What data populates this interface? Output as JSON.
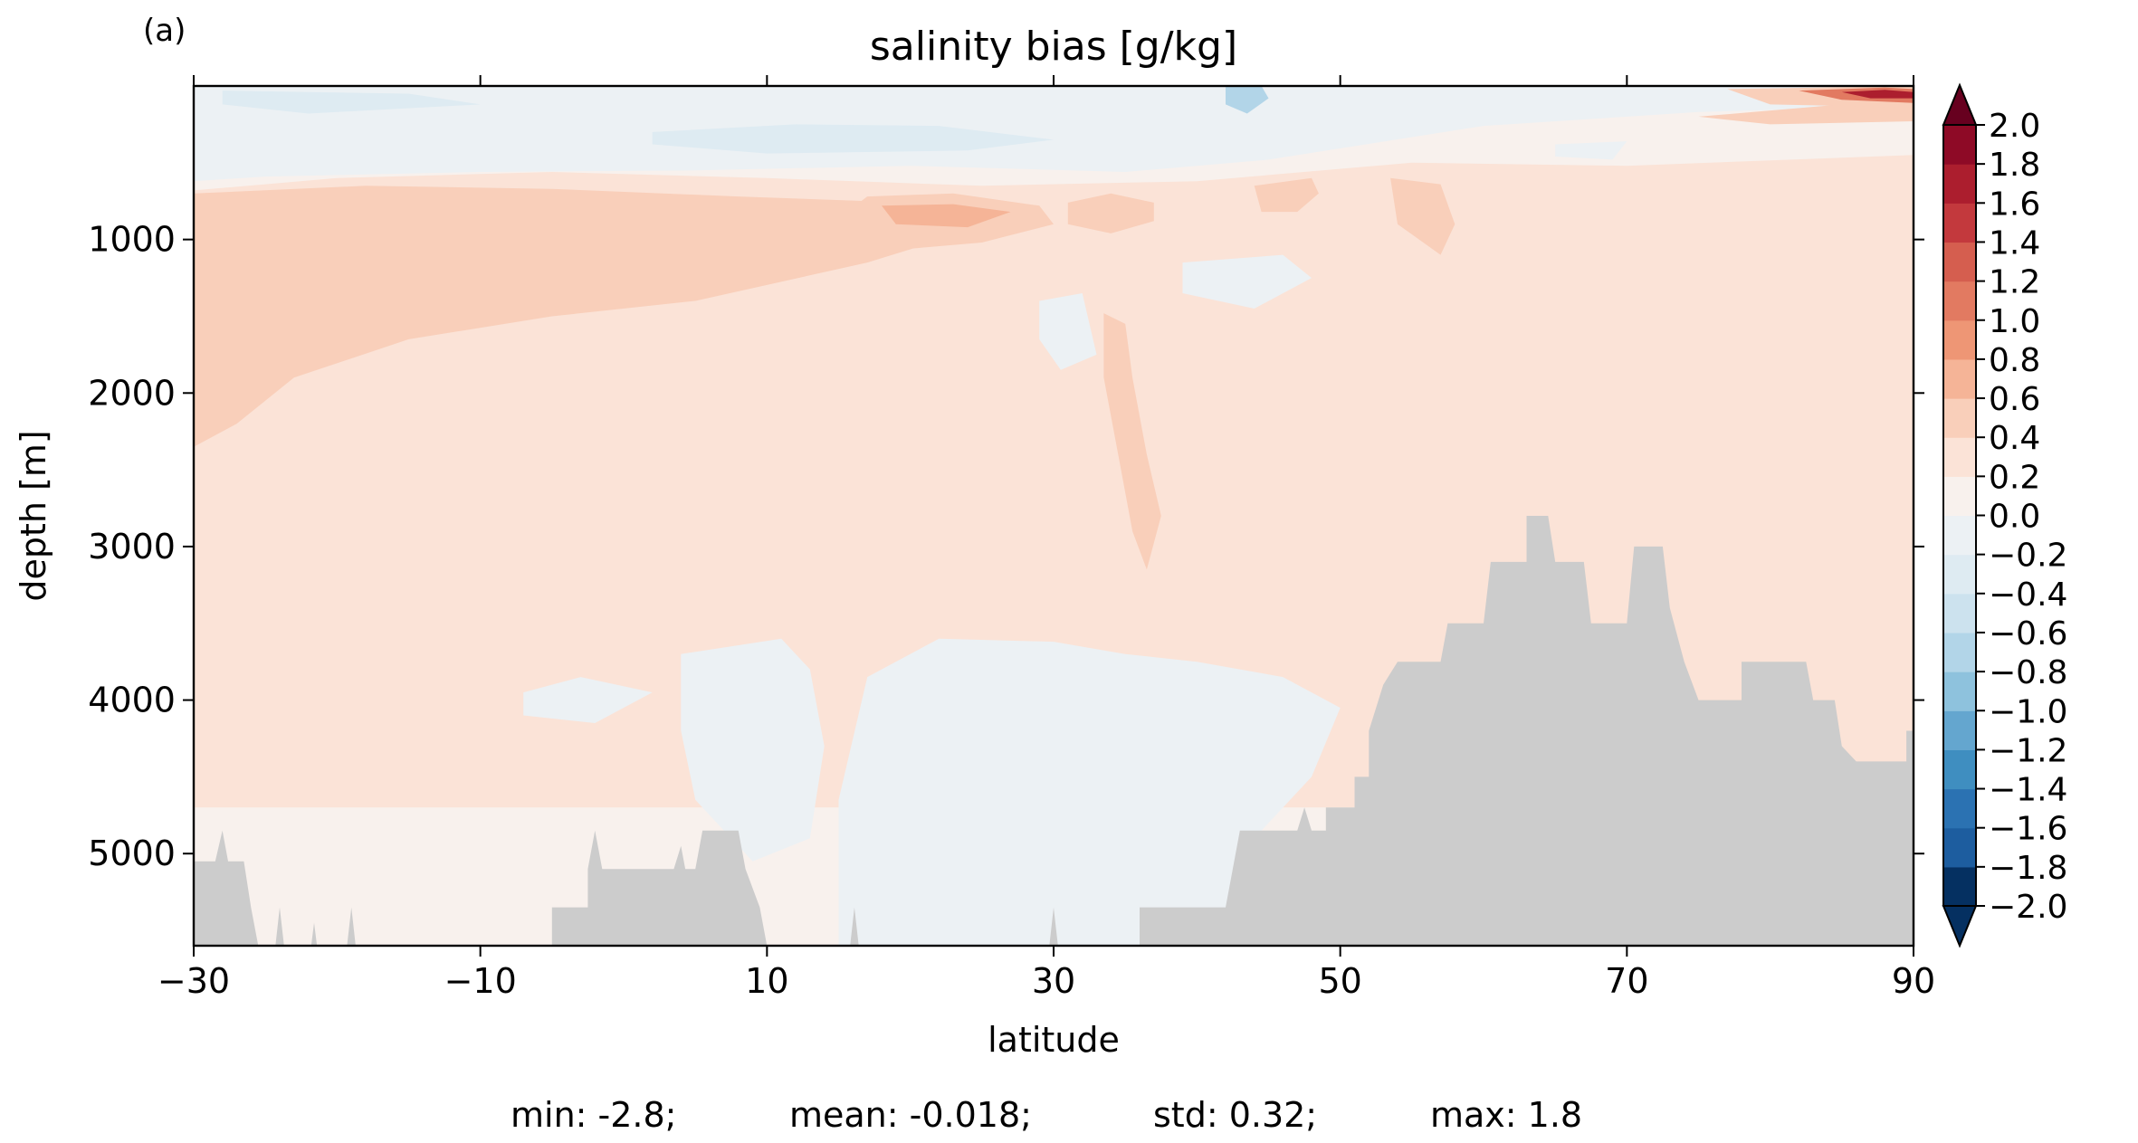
{
  "chart_data": {
    "type": "heatmap",
    "panel_label": "(a)",
    "title": "salinity bias [g/kg]",
    "xlabel": "latitude",
    "ylabel": "depth [m]",
    "xlim": [
      -30,
      90
    ],
    "ylim": [
      5600,
      0
    ],
    "x_ticks": [
      -30,
      -10,
      10,
      30,
      50,
      70,
      90
    ],
    "x_tick_labels": [
      "−30",
      "−10",
      "10",
      "30",
      "50",
      "70",
      "90"
    ],
    "y_ticks": [
      1000,
      2000,
      3000,
      4000,
      5000
    ],
    "y_tick_labels": [
      "1000",
      "2000",
      "3000",
      "4000",
      "5000"
    ],
    "colormap": "RdBu_r",
    "colorbar": {
      "levels": [
        -2.0,
        -1.8,
        -1.6,
        -1.4,
        -1.2,
        -1.0,
        -0.8,
        -0.6,
        -0.4,
        -0.2,
        0.0,
        0.2,
        0.4,
        0.6,
        0.8,
        1.0,
        1.2,
        1.4,
        1.6,
        1.8,
        2.0
      ],
      "tick_labels": [
        "−2.0",
        "−1.8",
        "−1.6",
        "−1.4",
        "−1.2",
        "−1.0",
        "−0.8",
        "−0.6",
        "−0.4",
        "−0.2",
        "0.0",
        "0.2",
        "0.4",
        "0.6",
        "0.8",
        "1.0",
        "1.2",
        "1.4",
        "1.6",
        "1.8",
        "2.0"
      ],
      "colors": [
        "#053061",
        "#1d5d9f",
        "#2b72b2",
        "#3f8ec0",
        "#64a6cf",
        "#8ec2dd",
        "#b2d5e8",
        "#cce2ee",
        "#deebf2",
        "#ecf1f4",
        "#f8f1ed",
        "#fbe3d7",
        "#f9cfba",
        "#f5b497",
        "#ee9675",
        "#e27a61",
        "#d55e4f",
        "#c3393d",
        "#ac1e2e",
        "#8e0a26"
      ],
      "extend": "both",
      "over_color": "#67001f",
      "under_color": "#053061"
    },
    "land_color": "#cccccc",
    "stats": {
      "min": "min: -2.8;",
      "mean": "mean: -0.018;",
      "std": "std: 0.32;",
      "max": "max: 1.8"
    },
    "features": [
      {
        "bias": 0.2,
        "points": [
          [
            -30,
            680
          ],
          [
            -20,
            600
          ],
          [
            -5,
            560
          ],
          [
            10,
            600
          ],
          [
            25,
            650
          ],
          [
            40,
            620
          ],
          [
            55,
            500
          ],
          [
            70,
            520
          ],
          [
            90,
            450
          ],
          [
            90,
            4700
          ],
          [
            -30,
            4700
          ]
        ]
      },
      {
        "bias": -0.2,
        "points": [
          [
            -30,
            0
          ],
          [
            90,
            0
          ],
          [
            90,
            130
          ],
          [
            75,
            170
          ],
          [
            60,
            260
          ],
          [
            45,
            480
          ],
          [
            35,
            560
          ],
          [
            20,
            520
          ],
          [
            5,
            550
          ],
          [
            -10,
            560
          ],
          [
            -25,
            590
          ],
          [
            -30,
            620
          ]
        ]
      },
      {
        "bias": 0.4,
        "points": [
          [
            -30,
            700
          ],
          [
            -18,
            650
          ],
          [
            -5,
            670
          ],
          [
            8,
            720
          ],
          [
            20,
            760
          ],
          [
            26,
            810
          ],
          [
            25,
            920
          ],
          [
            17,
            1150
          ],
          [
            5,
            1400
          ],
          [
            -5,
            1500
          ],
          [
            -15,
            1650
          ],
          [
            -23,
            1900
          ],
          [
            -27,
            2200
          ],
          [
            -30,
            2350
          ]
        ]
      },
      {
        "bias": 0.4,
        "points": [
          [
            17,
            720
          ],
          [
            23,
            700
          ],
          [
            29,
            780
          ],
          [
            30,
            900
          ],
          [
            25,
            1020
          ],
          [
            20,
            1060
          ],
          [
            16,
            1000
          ],
          [
            15,
            860
          ]
        ]
      },
      {
        "bias": 0.6,
        "points": [
          [
            18,
            780
          ],
          [
            23,
            770
          ],
          [
            27,
            820
          ],
          [
            24,
            920
          ],
          [
            19,
            900
          ]
        ]
      },
      {
        "bias": 0.4,
        "points": [
          [
            31,
            760
          ],
          [
            34,
            700
          ],
          [
            37,
            760
          ],
          [
            37,
            880
          ],
          [
            34,
            960
          ],
          [
            31,
            900
          ]
        ]
      },
      {
        "bias": 0.4,
        "points": [
          [
            33.5,
            1480
          ],
          [
            35,
            1550
          ],
          [
            35.5,
            1900
          ],
          [
            36.5,
            2400
          ],
          [
            37.5,
            2800
          ],
          [
            36.5,
            3150
          ],
          [
            35.5,
            2900
          ],
          [
            34.5,
            2400
          ],
          [
            33.5,
            1900
          ]
        ]
      },
      {
        "bias": 0.4,
        "points": [
          [
            44,
            650
          ],
          [
            48,
            600
          ],
          [
            48.5,
            700
          ],
          [
            47,
            820
          ],
          [
            44.5,
            820
          ]
        ]
      },
      {
        "bias": 0.4,
        "points": [
          [
            53.5,
            600
          ],
          [
            57,
            640
          ],
          [
            58,
            900
          ],
          [
            57,
            1100
          ],
          [
            54,
            900
          ]
        ]
      },
      {
        "bias": 0.4,
        "points": [
          [
            75,
            200
          ],
          [
            85,
            120
          ],
          [
            90,
            110
          ],
          [
            90,
            230
          ],
          [
            80,
            250
          ]
        ]
      },
      {
        "bias": 0.4,
        "points": [
          [
            77,
            20
          ],
          [
            90,
            0
          ],
          [
            90,
            140
          ],
          [
            80,
            120
          ]
        ]
      },
      {
        "bias": 1.0,
        "points": [
          [
            82,
            30
          ],
          [
            88,
            10
          ],
          [
            90,
            20
          ],
          [
            90,
            110
          ],
          [
            85,
            90
          ]
        ]
      },
      {
        "bias": 1.6,
        "points": [
          [
            85,
            40
          ],
          [
            88,
            25
          ],
          [
            90,
            40
          ],
          [
            90,
            80
          ],
          [
            87,
            80
          ]
        ]
      },
      {
        "bias": -0.4,
        "points": [
          [
            2,
            300
          ],
          [
            12,
            250
          ],
          [
            22,
            260
          ],
          [
            30,
            350
          ],
          [
            24,
            420
          ],
          [
            10,
            440
          ],
          [
            2,
            380
          ]
        ]
      },
      {
        "bias": -0.4,
        "points": [
          [
            -28,
            30
          ],
          [
            -15,
            50
          ],
          [
            -10,
            120
          ],
          [
            -22,
            180
          ],
          [
            -28,
            120
          ]
        ]
      },
      {
        "bias": -0.8,
        "points": [
          [
            42,
            0
          ],
          [
            44.5,
            0
          ],
          [
            45,
            80
          ],
          [
            43.5,
            180
          ],
          [
            42,
            120
          ]
        ]
      },
      {
        "bias": -0.2,
        "points": [
          [
            29,
            1400
          ],
          [
            32,
            1350
          ],
          [
            33,
            1750
          ],
          [
            30.5,
            1850
          ],
          [
            29,
            1650
          ]
        ]
      },
      {
        "bias": -0.2,
        "points": [
          [
            39,
            1150
          ],
          [
            46,
            1100
          ],
          [
            48,
            1250
          ],
          [
            44,
            1450
          ],
          [
            39,
            1350
          ]
        ]
      },
      {
        "bias": -0.2,
        "points": [
          [
            65,
            380
          ],
          [
            70,
            360
          ],
          [
            69,
            480
          ],
          [
            65,
            460
          ]
        ]
      },
      {
        "bias": -0.2,
        "points": [
          [
            -7,
            3950
          ],
          [
            -3,
            3850
          ],
          [
            2,
            3950
          ],
          [
            -2,
            4150
          ],
          [
            -7,
            4100
          ]
        ]
      },
      {
        "bias": -0.2,
        "points": [
          [
            4,
            3700
          ],
          [
            11,
            3600
          ],
          [
            13,
            3800
          ],
          [
            14,
            4300
          ],
          [
            13,
            4900
          ],
          [
            9,
            5050
          ],
          [
            5,
            4650
          ],
          [
            4,
            4200
          ]
        ]
      },
      {
        "bias": -0.2,
        "points": [
          [
            15,
            4650
          ],
          [
            17,
            3850
          ],
          [
            22,
            3600
          ],
          [
            30,
            3620
          ],
          [
            35,
            3700
          ],
          [
            40,
            3750
          ],
          [
            46,
            3850
          ],
          [
            50,
            4050
          ],
          [
            48,
            4500
          ],
          [
            44,
            4900
          ],
          [
            41,
            5600
          ],
          [
            15,
            5600
          ]
        ]
      },
      {
        "bias": 0.4,
        "points": [
          [
            83.5,
            4600
          ],
          [
            85,
            4500
          ],
          [
            86.5,
            4600
          ],
          [
            86.5,
            4950
          ],
          [
            85,
            5050
          ],
          [
            83.5,
            4900
          ]
        ]
      }
    ],
    "bathymetry": [
      [
        -30,
        5050
      ],
      [
        -28.5,
        5050
      ],
      [
        -28,
        4850
      ],
      [
        -27.6,
        5050
      ],
      [
        -26.5,
        5050
      ],
      [
        -26,
        5350
      ],
      [
        -25.5,
        5600
      ],
      [
        -24.3,
        5600
      ],
      [
        -24,
        5350
      ],
      [
        -23.7,
        5600
      ],
      [
        -21.8,
        5600
      ],
      [
        -21.6,
        5450
      ],
      [
        -21.4,
        5600
      ],
      [
        -19.3,
        5600
      ],
      [
        -19,
        5350
      ],
      [
        -18.7,
        5600
      ],
      [
        -5,
        5600
      ],
      [
        -5,
        5350
      ],
      [
        -2.5,
        5350
      ],
      [
        -2.5,
        5100
      ],
      [
        -2,
        4850
      ],
      [
        -1.5,
        5100
      ],
      [
        3.5,
        5100
      ],
      [
        4,
        4950
      ],
      [
        4.3,
        5100
      ],
      [
        5,
        5100
      ],
      [
        5.5,
        4850
      ],
      [
        8,
        4850
      ],
      [
        8.5,
        5100
      ],
      [
        9.5,
        5350
      ],
      [
        10,
        5600
      ],
      [
        15.8,
        5600
      ],
      [
        16.1,
        5350
      ],
      [
        16.4,
        5600
      ],
      [
        29.7,
        5600
      ],
      [
        30,
        5350
      ],
      [
        30.3,
        5600
      ],
      [
        36,
        5600
      ],
      [
        36,
        5350
      ],
      [
        41,
        5350
      ],
      [
        42,
        5350
      ],
      [
        42.5,
        5100
      ],
      [
        43,
        4850
      ],
      [
        47,
        4850
      ],
      [
        47.5,
        4700
      ],
      [
        48,
        4850
      ],
      [
        49,
        4850
      ],
      [
        49,
        4700
      ],
      [
        51,
        4700
      ],
      [
        51,
        4500
      ],
      [
        52,
        4500
      ],
      [
        52,
        4200
      ],
      [
        53,
        3900
      ],
      [
        54,
        3750
      ],
      [
        57,
        3750
      ],
      [
        57.5,
        3500
      ],
      [
        60,
        3500
      ],
      [
        60.5,
        3100
      ],
      [
        63,
        3100
      ],
      [
        63,
        2800
      ],
      [
        64.5,
        2800
      ],
      [
        65,
        3100
      ],
      [
        67,
        3100
      ],
      [
        67.5,
        3500
      ],
      [
        70,
        3500
      ],
      [
        70.5,
        3000
      ],
      [
        72.5,
        3000
      ],
      [
        73,
        3400
      ],
      [
        74,
        3750
      ],
      [
        75,
        4000
      ],
      [
        78,
        4000
      ],
      [
        78,
        3750
      ],
      [
        82.5,
        3750
      ],
      [
        83,
        4000
      ],
      [
        84.5,
        4000
      ],
      [
        85,
        4300
      ],
      [
        86,
        4400
      ],
      [
        89.5,
        4400
      ],
      [
        89.5,
        4200
      ],
      [
        90,
        4200
      ],
      [
        90,
        5600
      ],
      [
        -30,
        5600
      ]
    ]
  }
}
